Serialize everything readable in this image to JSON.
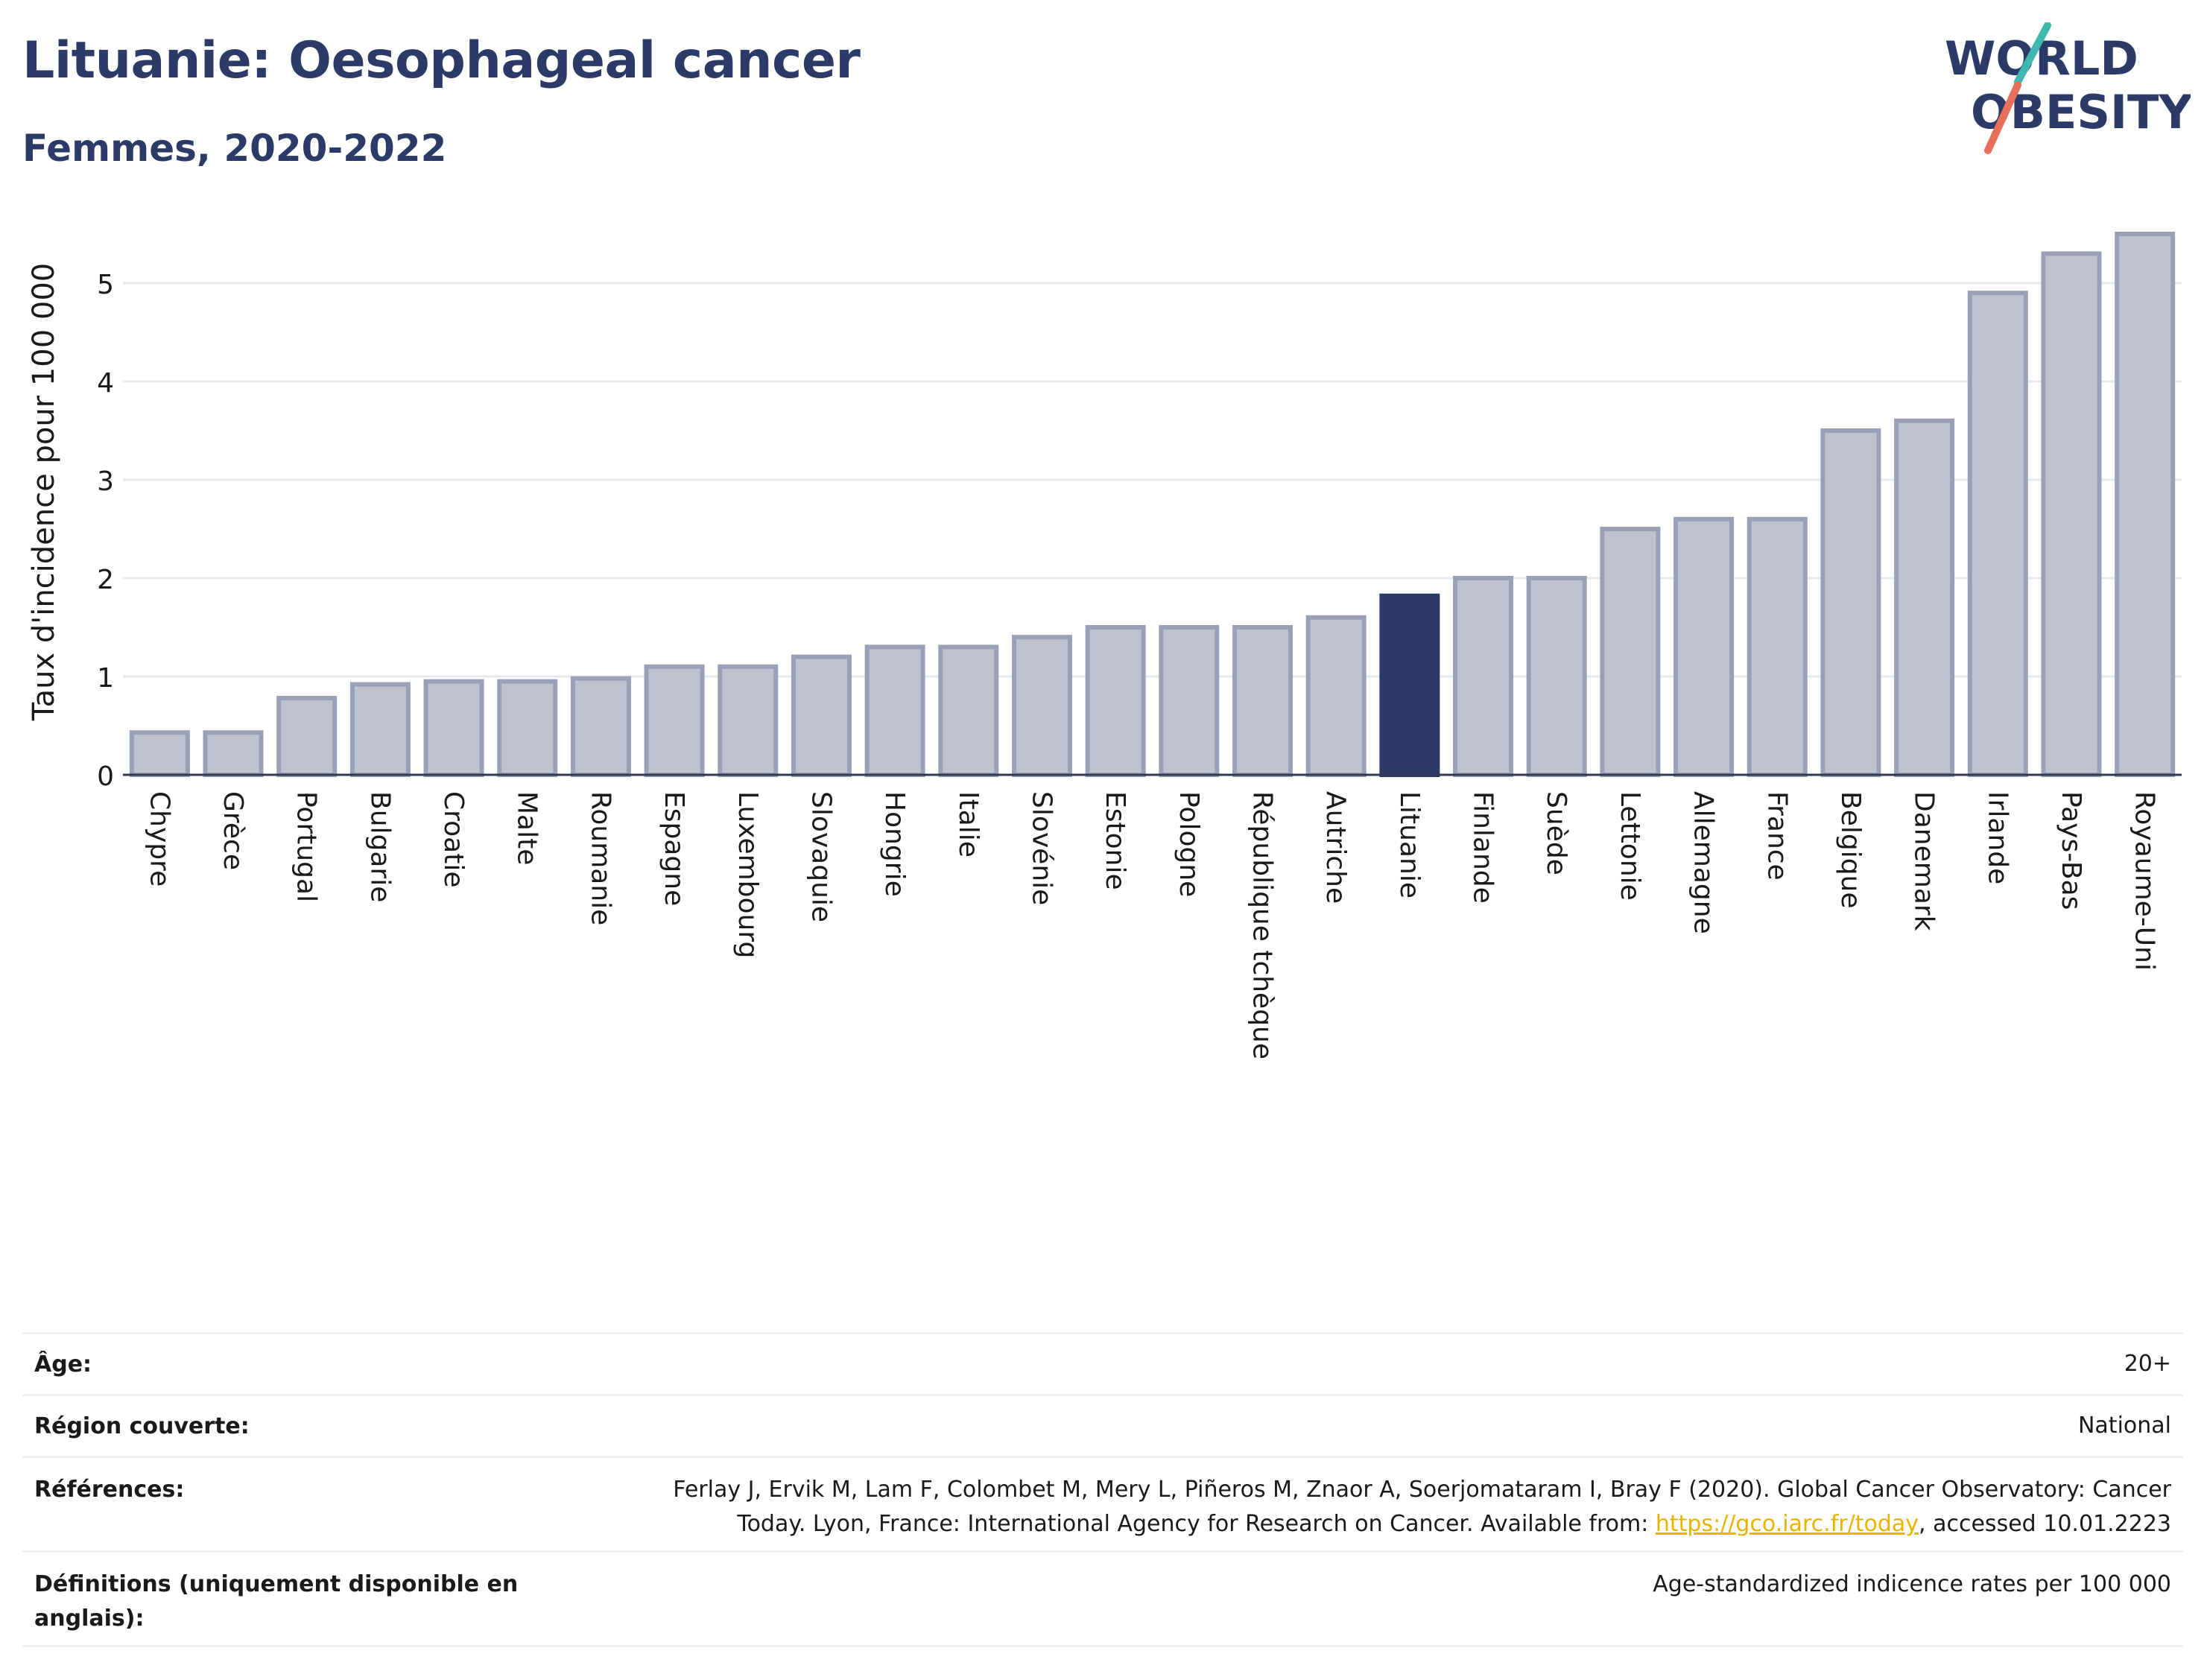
{
  "header": {
    "title": "Lituanie: Oesophageal cancer",
    "subtitle": "Femmes, 2020-2022",
    "logo_line1": "WORLD",
    "logo_line2": "OBESITY"
  },
  "colors": {
    "bar": "#bfc2cf",
    "bar_border": "#9aa0b8",
    "highlight": "#2b3a67",
    "title": "#2b3a67",
    "grid": "#e6e8ee",
    "logo_teal": "#3fb8b0",
    "logo_coral": "#e8705a",
    "link": "#e8b400"
  },
  "chart_data": {
    "type": "bar",
    "ylabel": "Taux d'incidence pour 100 000",
    "ylim": [
      0,
      5.5
    ],
    "yticks": [
      0,
      1,
      2,
      3,
      4,
      5
    ],
    "grid": true,
    "highlight": "Lituanie",
    "categories": [
      "Chypre",
      "Grèce",
      "Portugal",
      "Bulgarie",
      "Croatie",
      "Malte",
      "Roumanie",
      "Espagne",
      "Luxembourg",
      "Slovaquie",
      "Hongrie",
      "Italie",
      "Slovénie",
      "Estonie",
      "Pologne",
      "République tchèque",
      "Autriche",
      "Lituanie",
      "Finlande",
      "Suède",
      "Lettonie",
      "Allemagne",
      "France",
      "Belgique",
      "Danemark",
      "Irlande",
      "Pays-Bas",
      "Royaume-Uni"
    ],
    "values": [
      0.43,
      0.43,
      0.78,
      0.92,
      0.95,
      0.95,
      0.98,
      1.1,
      1.1,
      1.2,
      1.3,
      1.3,
      1.4,
      1.5,
      1.5,
      1.5,
      1.6,
      1.82,
      2.0,
      2.0,
      2.5,
      2.6,
      2.6,
      3.5,
      3.6,
      4.9,
      5.3,
      5.5
    ]
  },
  "info": {
    "age_label": "Âge:",
    "age_value": "20+",
    "region_label": "Région couverte:",
    "region_value": "National",
    "refs_label": "Références:",
    "refs_text1": "Ferlay J, Ervik M, Lam F, Colombet M, Mery L, Piñeros M, Znaor A, Soerjomataram I, Bray F (2020). Global Cancer Observatory: Cancer",
    "refs_text2": "Today. Lyon, France: International Agency for Research on Cancer. Available from: ",
    "refs_link": "https://gco.iarc.fr/today",
    "refs_text3": ", accessed 10.01.2223",
    "defs_label_1": "Définitions (uniquement disponible en",
    "defs_label_2": "anglais):",
    "defs_value": "Age-standardized indicence rates per 100 000"
  }
}
